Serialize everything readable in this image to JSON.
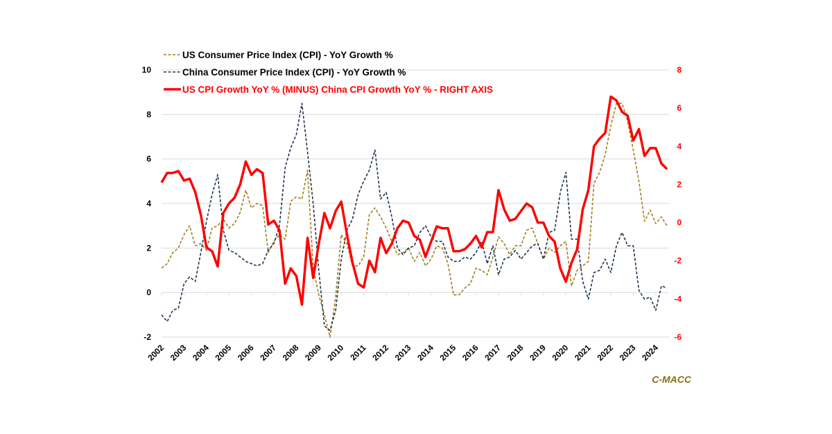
{
  "chart_data": {
    "type": "line",
    "title": "",
    "xlabel": "",
    "ylabel": "",
    "source_label": "C-MACC",
    "x_ticks": [
      "2002",
      "2003",
      "2004",
      "2005",
      "2006",
      "2007",
      "2008",
      "2009",
      "2010",
      "2011",
      "2012",
      "2013",
      "2014",
      "2015",
      "2016",
      "2017",
      "2018",
      "2019",
      "2020",
      "2021",
      "2022",
      "2023",
      "2024"
    ],
    "x_range": [
      2002.0,
      2024.55
    ],
    "left_axis": {
      "ylim": [
        -2,
        10
      ],
      "ticks": [
        "10",
        "8",
        "6",
        "4",
        "2",
        "0",
        "-2"
      ],
      "tick_values": [
        10,
        8,
        6,
        4,
        2,
        0,
        -2
      ]
    },
    "right_axis": {
      "ylim": [
        -6,
        8
      ],
      "ticks": [
        "8",
        "6",
        "4",
        "2",
        "0",
        "-2",
        "-4",
        "-6"
      ],
      "tick_values": [
        8,
        6,
        4,
        2,
        0,
        -2,
        -4,
        -6
      ],
      "color": "#ff0000"
    },
    "grid": true,
    "legend_position": "top-left",
    "x": [
      2002.0,
      2002.25,
      2002.5,
      2002.75,
      2003.0,
      2003.25,
      2003.5,
      2003.75,
      2004.0,
      2004.25,
      2004.5,
      2004.75,
      2005.0,
      2005.25,
      2005.5,
      2005.75,
      2006.0,
      2006.25,
      2006.5,
      2006.75,
      2007.0,
      2007.25,
      2007.5,
      2007.75,
      2008.0,
      2008.25,
      2008.5,
      2008.75,
      2009.0,
      2009.25,
      2009.5,
      2009.75,
      2010.0,
      2010.25,
      2010.5,
      2010.75,
      2011.0,
      2011.25,
      2011.5,
      2011.75,
      2012.0,
      2012.25,
      2012.5,
      2012.75,
      2013.0,
      2013.25,
      2013.5,
      2013.75,
      2014.0,
      2014.25,
      2014.5,
      2014.75,
      2015.0,
      2015.25,
      2015.5,
      2015.75,
      2016.0,
      2016.25,
      2016.5,
      2016.75,
      2017.0,
      2017.25,
      2017.5,
      2017.75,
      2018.0,
      2018.25,
      2018.5,
      2018.75,
      2019.0,
      2019.25,
      2019.5,
      2019.75,
      2020.0,
      2020.25,
      2020.5,
      2020.75,
      2021.0,
      2021.25,
      2021.5,
      2021.75,
      2022.0,
      2022.25,
      2022.5,
      2022.75,
      2023.0,
      2023.25,
      2023.5,
      2023.75,
      2024.0,
      2024.25,
      2024.5
    ],
    "series": [
      {
        "name": "US Consumer Price Index (CPI) - YoY Growth %",
        "axis": "left",
        "style": "dashed",
        "color": "#a07d1e",
        "values": [
          1.1,
          1.3,
          1.8,
          2.0,
          2.6,
          3.0,
          2.1,
          2.2,
          1.9,
          2.9,
          3.0,
          3.3,
          2.9,
          3.1,
          3.6,
          4.6,
          3.8,
          4.0,
          3.9,
          1.8,
          2.3,
          2.6,
          2.4,
          4.1,
          4.3,
          4.2,
          5.5,
          1.1,
          -0.1,
          -1.0,
          -2.0,
          -0.2,
          2.6,
          2.2,
          1.2,
          1.2,
          1.6,
          3.5,
          3.8,
          3.4,
          2.9,
          2.3,
          1.7,
          1.8,
          2.0,
          1.4,
          1.8,
          1.2,
          1.5,
          2.1,
          2.0,
          1.3,
          -0.1,
          -0.1,
          0.2,
          0.4,
          1.1,
          1.0,
          0.8,
          1.6,
          2.5,
          2.2,
          1.7,
          2.1,
          2.1,
          2.8,
          2.9,
          2.2,
          1.5,
          2.0,
          1.8,
          2.1,
          2.3,
          0.3,
          1.0,
          1.2,
          1.4,
          4.9,
          5.4,
          6.2,
          7.5,
          8.5,
          8.5,
          7.7,
          6.4,
          5.0,
          3.2,
          3.7,
          3.1,
          3.4,
          3.0
        ]
      },
      {
        "name": "China Consumer Price Index (CPI) - YoY Growth %",
        "axis": "left",
        "style": "dashed",
        "color": "#1c3350",
        "values": [
          -1.0,
          -1.3,
          -0.8,
          -0.7,
          0.4,
          0.7,
          0.5,
          1.8,
          3.2,
          4.4,
          5.3,
          2.8,
          1.9,
          1.8,
          1.6,
          1.4,
          1.3,
          1.2,
          1.3,
          1.9,
          2.2,
          3.0,
          5.6,
          6.5,
          7.1,
          8.5,
          6.3,
          4.0,
          1.0,
          -1.5,
          -1.7,
          -0.8,
          1.5,
          2.8,
          3.3,
          4.4,
          5.0,
          5.5,
          6.4,
          4.2,
          4.5,
          3.4,
          2.0,
          1.7,
          2.0,
          2.1,
          2.7,
          3.0,
          2.5,
          2.3,
          2.3,
          1.6,
          1.4,
          1.4,
          1.6,
          1.5,
          1.8,
          2.3,
          1.3,
          2.1,
          0.8,
          1.5,
          1.6,
          1.9,
          1.5,
          1.8,
          2.1,
          2.2,
          1.5,
          2.7,
          2.8,
          4.5,
          5.4,
          2.4,
          2.4,
          0.5,
          -0.3,
          0.9,
          1.0,
          1.5,
          0.9,
          2.1,
          2.7,
          2.1,
          2.1,
          0.1,
          -0.3,
          -0.2,
          -0.8,
          0.3,
          0.2
        ]
      },
      {
        "name": "US CPI Growth YoY % (MINUS) China CPI Growth YoY % - RIGHT AXIS",
        "axis": "right",
        "style": "solid",
        "color": "#ff0000",
        "values": [
          2.1,
          2.6,
          2.6,
          2.7,
          2.2,
          2.3,
          1.6,
          0.4,
          -1.3,
          -1.5,
          -2.3,
          0.5,
          1.0,
          1.3,
          2.0,
          3.2,
          2.5,
          2.8,
          2.6,
          -0.1,
          0.1,
          -0.4,
          -3.2,
          -2.4,
          -2.8,
          -4.3,
          -0.8,
          -2.9,
          -1.1,
          0.5,
          -0.3,
          0.6,
          1.1,
          -0.6,
          -2.1,
          -3.2,
          -3.4,
          -2.0,
          -2.6,
          -0.8,
          -1.6,
          -1.1,
          -0.3,
          0.1,
          0.0,
          -0.7,
          -0.9,
          -1.8,
          -1.0,
          -0.2,
          -0.3,
          -0.3,
          -1.5,
          -1.5,
          -1.4,
          -1.1,
          -0.7,
          -1.3,
          -0.5,
          -0.5,
          1.7,
          0.7,
          0.1,
          0.2,
          0.6,
          1.0,
          0.8,
          0.0,
          0.0,
          -0.7,
          -1.0,
          -2.4,
          -3.1,
          -2.1,
          -1.4,
          0.7,
          1.7,
          4.0,
          4.4,
          4.7,
          6.6,
          6.4,
          5.8,
          5.6,
          4.3,
          4.9,
          3.5,
          3.9,
          3.9,
          3.1,
          2.8
        ]
      }
    ]
  }
}
